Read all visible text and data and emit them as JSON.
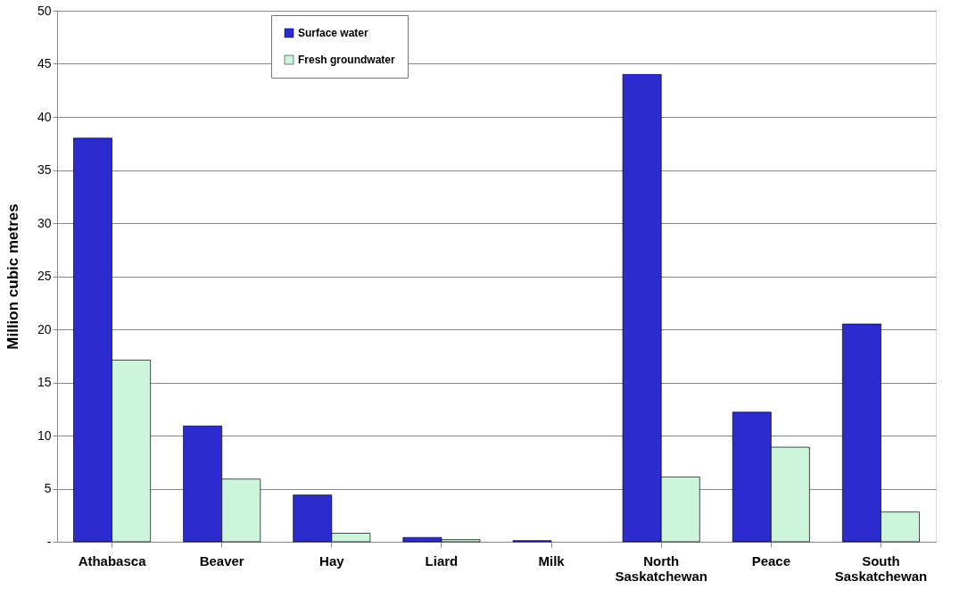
{
  "chart_data": {
    "type": "bar",
    "ylabel": "Million cubic metres",
    "categories": [
      "Athabasca",
      "Beaver",
      "Hay",
      "Liard",
      "Milk",
      "North Saskatchewan",
      "Peace",
      "South Saskatchewan"
    ],
    "series": [
      {
        "name": "Surface water",
        "color": "#2b2bd0",
        "values": [
          38,
          10.9,
          4.4,
          0.4,
          0.1,
          44,
          12.2,
          20.5
        ]
      },
      {
        "name": "Fresh groundwater",
        "color": "#ccf5dc",
        "values": [
          17.1,
          5.9,
          0.8,
          0.2,
          null,
          6.1,
          8.9,
          2.8
        ]
      }
    ],
    "ylim": [
      0,
      50
    ],
    "yticks": [
      {
        "value": 0,
        "label": "-"
      },
      5,
      10,
      15,
      20,
      25,
      30,
      35,
      40,
      45,
      50
    ],
    "grid": "y",
    "legend": "top left"
  }
}
